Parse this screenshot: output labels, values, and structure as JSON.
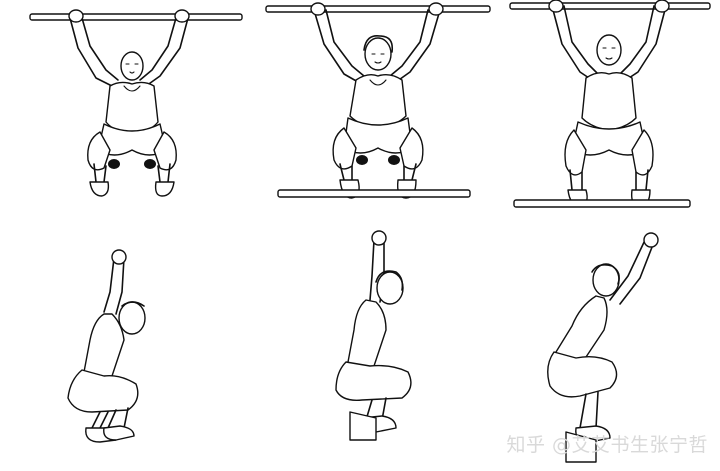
{
  "image": {
    "scene": "overhead-squat-assessment-line-drawings",
    "watermark_text": "知乎 @艾艾书生张宁哲"
  }
}
